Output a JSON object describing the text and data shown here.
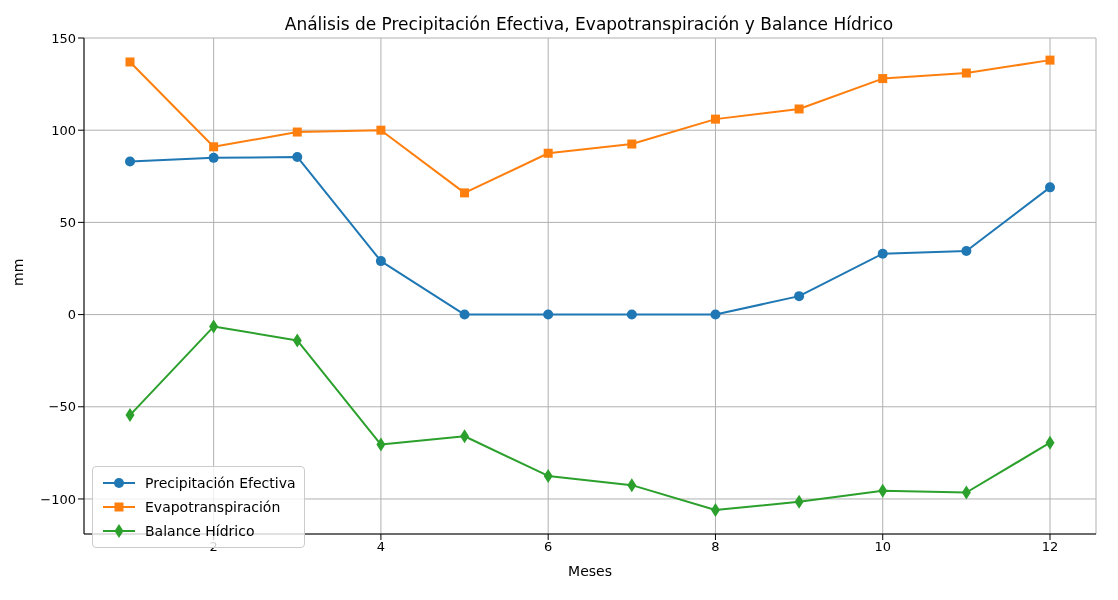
{
  "chart_data": {
    "type": "line",
    "title": "Análisis de Precipitación Efectiva, Evapotranspiración y Balance Hídrico",
    "xlabel": "Meses",
    "ylabel": "mm",
    "x": [
      1,
      2,
      3,
      4,
      5,
      6,
      7,
      8,
      9,
      10,
      11,
      12
    ],
    "series": [
      {
        "name": "Precipitación Efectiva",
        "color": "#1f77b4",
        "marker": "circle",
        "values": [
          83,
          85,
          85.5,
          29,
          0,
          0,
          0,
          0,
          10,
          33,
          34.5,
          69
        ]
      },
      {
        "name": "Evapotranspiración",
        "color": "#ff7f0e",
        "marker": "square",
        "values": [
          137,
          91,
          99,
          100,
          66,
          87.5,
          92.5,
          106,
          111.5,
          128,
          131,
          138
        ]
      },
      {
        "name": "Balance Hídrico",
        "color": "#2ca02c",
        "marker": "diamond",
        "values": [
          -54.5,
          -6.5,
          -14,
          -70.5,
          -66,
          -87.5,
          -92.5,
          -106,
          -101.5,
          -95.5,
          -96.5,
          -69.5
        ]
      }
    ],
    "xlim": [
      0.45,
      12.55
    ],
    "xticks": [
      2,
      4,
      6,
      8,
      10,
      12
    ],
    "ylim": [
      -119,
      150
    ],
    "yticks": [
      -100,
      -50,
      0,
      50,
      100,
      150
    ],
    "grid": true,
    "legend": "bottom left",
    "line_style": "solid"
  }
}
